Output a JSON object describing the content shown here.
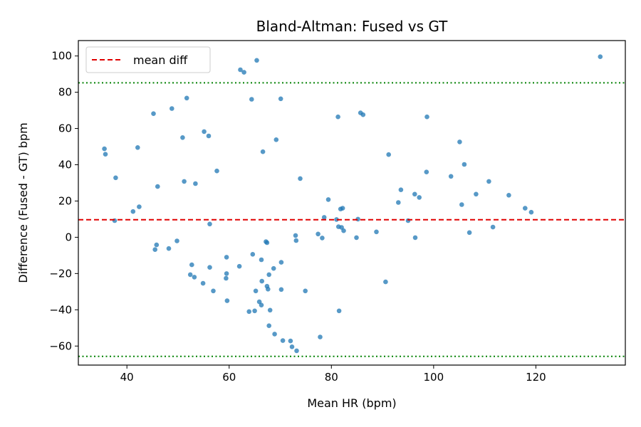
{
  "chart_data": {
    "type": "scatter",
    "title": "Bland-Altman: Fused vs GT",
    "xlabel": "Mean HR (bpm)",
    "ylabel": "Difference (Fused - GT) bpm",
    "xlim": [
      30.5,
      137.5
    ],
    "ylim": [
      -70.5,
      108.5
    ],
    "xticks": [
      40,
      60,
      80,
      100,
      120
    ],
    "yticks": [
      -60,
      -40,
      -20,
      0,
      20,
      40,
      60,
      80,
      100
    ],
    "grid": false,
    "legend_position": "top-left",
    "legend": [
      {
        "label": "mean diff",
        "style": "dashed",
        "color": "#e00000"
      }
    ],
    "mean_diff": 9.7,
    "loa_upper": 85.2,
    "loa_lower": -65.7,
    "colors": {
      "points": "#1f77b4",
      "mean_line": "#e00000",
      "loa_line": "#008000"
    },
    "points": [
      {
        "x": 35.6,
        "y": 48.8
      },
      {
        "x": 35.8,
        "y": 45.8
      },
      {
        "x": 37.6,
        "y": 9.2
      },
      {
        "x": 37.8,
        "y": 32.8
      },
      {
        "x": 41.2,
        "y": 14.2
      },
      {
        "x": 42.1,
        "y": 49.5
      },
      {
        "x": 42.4,
        "y": 16.8
      },
      {
        "x": 45.2,
        "y": 68.2
      },
      {
        "x": 45.5,
        "y": -6.8
      },
      {
        "x": 45.8,
        "y": -4.2
      },
      {
        "x": 46.0,
        "y": 28.0
      },
      {
        "x": 48.2,
        "y": -6.2
      },
      {
        "x": 48.8,
        "y": 71.0
      },
      {
        "x": 49.8,
        "y": -2.0
      },
      {
        "x": 50.9,
        "y": 55.0
      },
      {
        "x": 51.2,
        "y": 30.8
      },
      {
        "x": 51.7,
        "y": 76.8
      },
      {
        "x": 52.4,
        "y": -20.6
      },
      {
        "x": 52.7,
        "y": -15.2
      },
      {
        "x": 53.2,
        "y": -22.0
      },
      {
        "x": 53.4,
        "y": 29.6
      },
      {
        "x": 54.9,
        "y": -25.4
      },
      {
        "x": 55.1,
        "y": 58.3
      },
      {
        "x": 56.0,
        "y": 55.9
      },
      {
        "x": 56.2,
        "y": 7.3
      },
      {
        "x": 56.2,
        "y": -16.6
      },
      {
        "x": 56.9,
        "y": -29.6
      },
      {
        "x": 57.6,
        "y": 36.6
      },
      {
        "x": 59.4,
        "y": -22.6
      },
      {
        "x": 59.5,
        "y": -20.0
      },
      {
        "x": 59.5,
        "y": -11.0
      },
      {
        "x": 59.6,
        "y": -35.0
      },
      {
        "x": 62.0,
        "y": -16.0
      },
      {
        "x": 62.2,
        "y": 92.4
      },
      {
        "x": 62.9,
        "y": 91.0
      },
      {
        "x": 63.9,
        "y": -41.0
      },
      {
        "x": 64.4,
        "y": 76.1
      },
      {
        "x": 64.6,
        "y": -9.4
      },
      {
        "x": 65.0,
        "y": -40.6
      },
      {
        "x": 65.2,
        "y": -29.6
      },
      {
        "x": 65.4,
        "y": 97.6
      },
      {
        "x": 65.9,
        "y": -35.6
      },
      {
        "x": 66.3,
        "y": -37.4
      },
      {
        "x": 66.3,
        "y": -12.4
      },
      {
        "x": 66.4,
        "y": -24.2
      },
      {
        "x": 66.6,
        "y": 47.2
      },
      {
        "x": 67.2,
        "y": -2.4
      },
      {
        "x": 67.4,
        "y": -3.0
      },
      {
        "x": 67.4,
        "y": -27.0
      },
      {
        "x": 67.6,
        "y": -28.6
      },
      {
        "x": 67.8,
        "y": -20.6
      },
      {
        "x": 67.8,
        "y": -48.8
      },
      {
        "x": 68.0,
        "y": -40.2
      },
      {
        "x": 68.7,
        "y": -17.2
      },
      {
        "x": 68.9,
        "y": -53.4
      },
      {
        "x": 69.2,
        "y": 53.8
      },
      {
        "x": 70.1,
        "y": 76.4
      },
      {
        "x": 70.2,
        "y": -13.8
      },
      {
        "x": 70.2,
        "y": -28.8
      },
      {
        "x": 70.5,
        "y": -57.0
      },
      {
        "x": 72.0,
        "y": -57.2
      },
      {
        "x": 72.3,
        "y": -60.4
      },
      {
        "x": 73.0,
        "y": 1.0
      },
      {
        "x": 73.1,
        "y": -1.8
      },
      {
        "x": 73.2,
        "y": -62.6
      },
      {
        "x": 73.9,
        "y": 32.4
      },
      {
        "x": 74.9,
        "y": -29.6
      },
      {
        "x": 77.4,
        "y": 1.8
      },
      {
        "x": 77.8,
        "y": -55.0
      },
      {
        "x": 78.2,
        "y": -0.4
      },
      {
        "x": 78.6,
        "y": 11.0
      },
      {
        "x": 79.4,
        "y": 20.8
      },
      {
        "x": 81.0,
        "y": 9.8
      },
      {
        "x": 81.3,
        "y": 66.4
      },
      {
        "x": 81.4,
        "y": 5.8
      },
      {
        "x": 81.5,
        "y": -40.6
      },
      {
        "x": 81.8,
        "y": 15.6
      },
      {
        "x": 82.0,
        "y": 5.4
      },
      {
        "x": 82.2,
        "y": 16.0
      },
      {
        "x": 82.4,
        "y": 3.6
      },
      {
        "x": 84.9,
        "y": -0.2
      },
      {
        "x": 85.2,
        "y": 10.0
      },
      {
        "x": 85.7,
        "y": 68.6
      },
      {
        "x": 86.2,
        "y": 67.6
      },
      {
        "x": 88.8,
        "y": 3.0
      },
      {
        "x": 90.6,
        "y": -24.6
      },
      {
        "x": 91.2,
        "y": 45.6
      },
      {
        "x": 93.1,
        "y": 19.2
      },
      {
        "x": 93.6,
        "y": 26.2
      },
      {
        "x": 95.0,
        "y": 9.2
      },
      {
        "x": 96.3,
        "y": 23.8
      },
      {
        "x": 96.4,
        "y": -0.2
      },
      {
        "x": 97.2,
        "y": 22.0
      },
      {
        "x": 98.6,
        "y": 36.0
      },
      {
        "x": 98.7,
        "y": 66.4
      },
      {
        "x": 103.4,
        "y": 33.6
      },
      {
        "x": 105.1,
        "y": 52.6
      },
      {
        "x": 105.5,
        "y": 18.0
      },
      {
        "x": 106.0,
        "y": 40.2
      },
      {
        "x": 107.0,
        "y": 2.6
      },
      {
        "x": 108.3,
        "y": 23.8
      },
      {
        "x": 110.8,
        "y": 30.8
      },
      {
        "x": 111.6,
        "y": 5.6
      },
      {
        "x": 114.7,
        "y": 23.2
      },
      {
        "x": 117.9,
        "y": 16.0
      },
      {
        "x": 119.1,
        "y": 13.8
      },
      {
        "x": 132.6,
        "y": 99.6
      }
    ]
  }
}
